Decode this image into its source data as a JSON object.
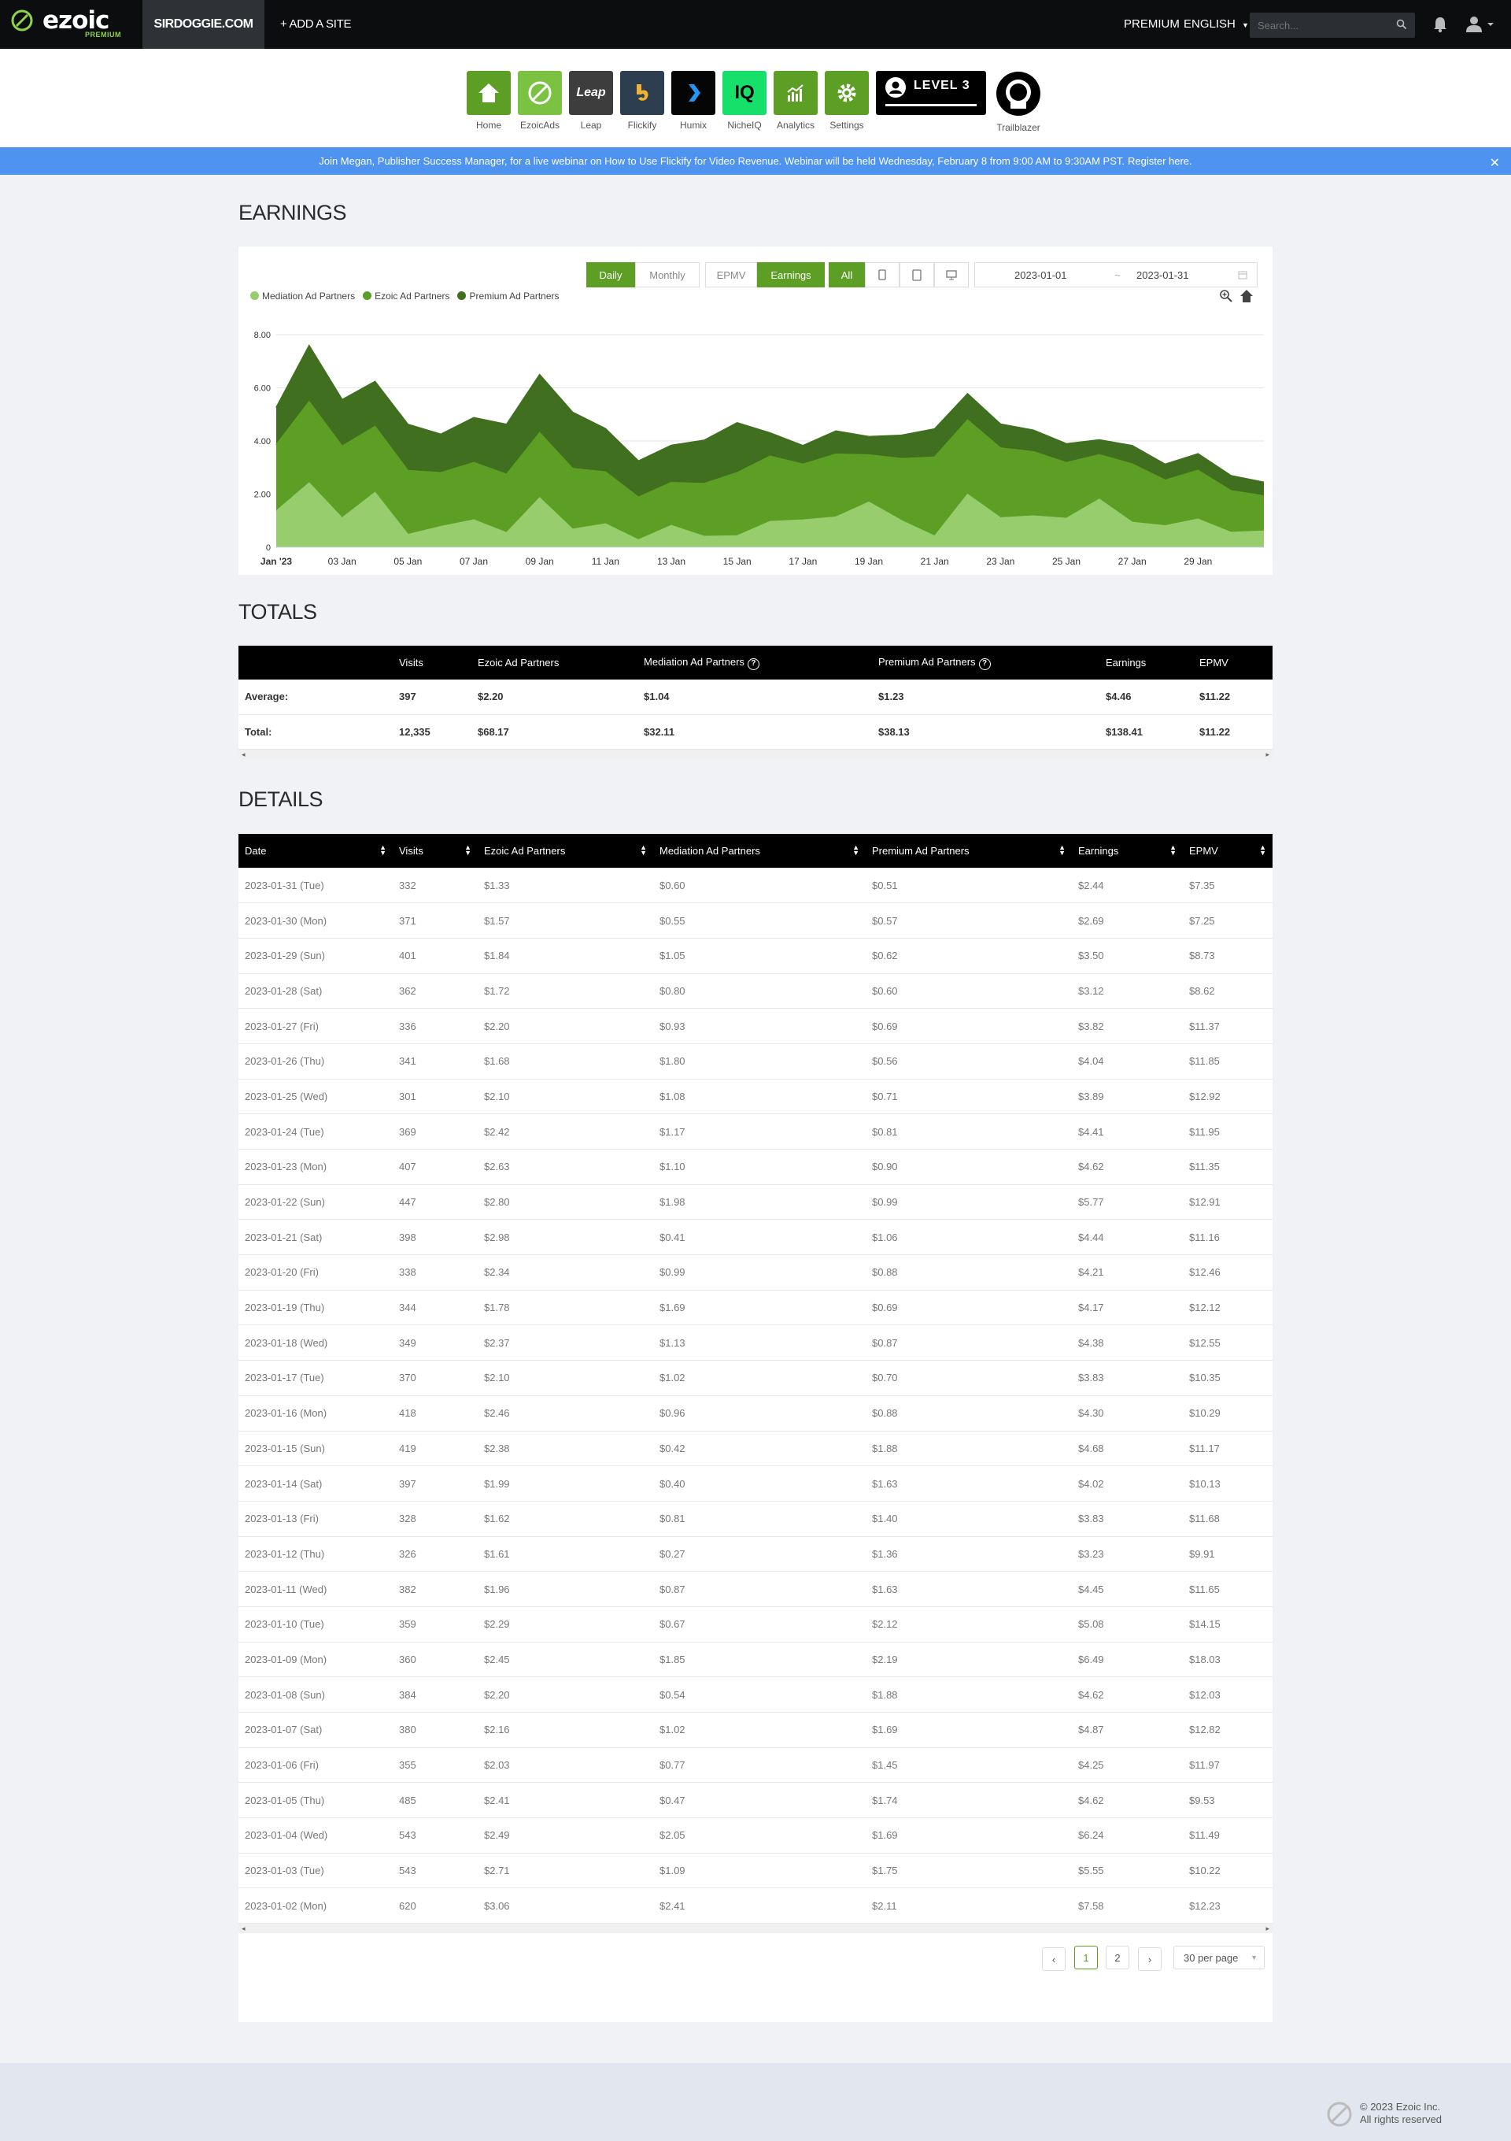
{
  "topbar": {
    "logo_word": "ezoic",
    "logo_sub": "PREMIUM",
    "site": "SIRDOGGIE.COM",
    "add_site": "+ ADD A SITE",
    "premium": "PREMIUM",
    "language": "ENGLISH",
    "search_placeholder": "Search..."
  },
  "apps": [
    {
      "label": "Home",
      "color": "#5c9f24"
    },
    {
      "label": "EzoicAds",
      "color": "#7cc242"
    },
    {
      "label": "Leap",
      "color": "#3d3d3d",
      "text": "Leap"
    },
    {
      "label": "Flickify",
      "color": "#2c3e50"
    },
    {
      "label": "Humix",
      "color": "#050505"
    },
    {
      "label": "NicheIQ",
      "color": "#16e06a",
      "text": "IQ"
    },
    {
      "label": "Analytics",
      "color": "#5c9f24"
    },
    {
      "label": "Settings",
      "color": "#5c9f24"
    }
  ],
  "level_label": "LEVEL 3",
  "trailblazer_label": "Trailblazer",
  "banner": {
    "text": "Join Megan, Publisher Success Manager, for a live webinar on How to Use Flickify for Video Revenue. Webinar will be held Wednesday, February 8 from 9:00 AM to 9:30AM PST.",
    "link": "Register here."
  },
  "earnings": {
    "title": "EARNINGS",
    "controls": {
      "daily": "Daily",
      "monthly": "Monthly",
      "epmv": "EPMV",
      "earnings": "Earnings",
      "all": "All"
    },
    "date_from": "2023-01-01",
    "date_sep": "~",
    "date_to": "2023-01-31"
  },
  "chart_data": {
    "type": "area",
    "stacked": true,
    "x": [
      "2023-01-01",
      "2023-01-02",
      "2023-01-03",
      "2023-01-04",
      "2023-01-05",
      "2023-01-06",
      "2023-01-07",
      "2023-01-08",
      "2023-01-09",
      "2023-01-10",
      "2023-01-11",
      "2023-01-12",
      "2023-01-13",
      "2023-01-14",
      "2023-01-15",
      "2023-01-16",
      "2023-01-17",
      "2023-01-18",
      "2023-01-19",
      "2023-01-20",
      "2023-01-21",
      "2023-01-22",
      "2023-01-23",
      "2023-01-24",
      "2023-01-25",
      "2023-01-26",
      "2023-01-27",
      "2023-01-28",
      "2023-01-29",
      "2023-01-30",
      "2023-01-31"
    ],
    "x_tick_labels": [
      "Jan '23",
      "03 Jan",
      "05 Jan",
      "07 Jan",
      "09 Jan",
      "11 Jan",
      "13 Jan",
      "15 Jan",
      "17 Jan",
      "19 Jan",
      "21 Jan",
      "23 Jan",
      "25 Jan",
      "27 Jan",
      "29 Jan"
    ],
    "y_tick_labels": [
      "0",
      "2.00",
      "4.00",
      "6.00",
      "8.00"
    ],
    "ylim": [
      0,
      8
    ],
    "legend_position": "top-left",
    "series": [
      {
        "name": "Mediation Ad Partners",
        "color": "#97cd6c",
        "values": [
          1.35,
          2.41,
          1.09,
          2.05,
          0.47,
          0.77,
          1.02,
          0.54,
          1.85,
          0.67,
          0.87,
          0.27,
          0.81,
          0.4,
          0.42,
          0.96,
          1.02,
          1.13,
          1.69,
          0.99,
          0.41,
          1.98,
          1.1,
          1.17,
          1.08,
          1.8,
          0.93,
          0.8,
          1.05,
          0.55,
          0.6
        ]
      },
      {
        "name": "Ezoic Ad Partners",
        "color": "#5c9f24",
        "values": [
          2.5,
          3.06,
          2.71,
          2.49,
          2.41,
          2.03,
          2.16,
          2.2,
          2.45,
          2.29,
          1.96,
          1.61,
          1.62,
          1.99,
          2.38,
          2.46,
          2.1,
          2.37,
          1.78,
          2.34,
          2.98,
          2.8,
          2.63,
          2.42,
          2.1,
          1.68,
          2.2,
          1.72,
          1.84,
          1.57,
          1.33
        ]
      },
      {
        "name": "Premium Ad Partners",
        "color": "#3f6f1f",
        "values": [
          1.4,
          2.11,
          1.75,
          1.69,
          1.74,
          1.45,
          1.69,
          1.88,
          2.19,
          2.12,
          1.63,
          1.36,
          1.4,
          1.63,
          1.88,
          0.88,
          0.7,
          0.87,
          0.69,
          0.88,
          1.06,
          0.99,
          0.9,
          0.81,
          0.71,
          0.56,
          0.69,
          0.6,
          0.62,
          0.57,
          0.51
        ]
      }
    ]
  },
  "totals": {
    "title": "TOTALS",
    "headers": [
      "",
      "Visits",
      "Ezoic Ad Partners",
      "Mediation Ad Partners",
      "Premium Ad Partners",
      "Earnings",
      "EPMV"
    ],
    "rows": [
      [
        "Average:",
        "397",
        "$2.20",
        "$1.04",
        "$1.23",
        "$4.46",
        "$11.22"
      ],
      [
        "Total:",
        "12,335",
        "$68.17",
        "$32.11",
        "$38.13",
        "$138.41",
        "$11.22"
      ]
    ]
  },
  "details": {
    "title": "DETAILS",
    "headers": [
      "Date",
      "Visits",
      "Ezoic Ad Partners",
      "Mediation Ad Partners",
      "Premium Ad Partners",
      "Earnings",
      "EPMV"
    ],
    "rows": [
      [
        "2023-01-31 (Tue)",
        "332",
        "$1.33",
        "$0.60",
        "$0.51",
        "$2.44",
        "$7.35"
      ],
      [
        "2023-01-30 (Mon)",
        "371",
        "$1.57",
        "$0.55",
        "$0.57",
        "$2.69",
        "$7.25"
      ],
      [
        "2023-01-29 (Sun)",
        "401",
        "$1.84",
        "$1.05",
        "$0.62",
        "$3.50",
        "$8.73"
      ],
      [
        "2023-01-28 (Sat)",
        "362",
        "$1.72",
        "$0.80",
        "$0.60",
        "$3.12",
        "$8.62"
      ],
      [
        "2023-01-27 (Fri)",
        "336",
        "$2.20",
        "$0.93",
        "$0.69",
        "$3.82",
        "$11.37"
      ],
      [
        "2023-01-26 (Thu)",
        "341",
        "$1.68",
        "$1.80",
        "$0.56",
        "$4.04",
        "$11.85"
      ],
      [
        "2023-01-25 (Wed)",
        "301",
        "$2.10",
        "$1.08",
        "$0.71",
        "$3.89",
        "$12.92"
      ],
      [
        "2023-01-24 (Tue)",
        "369",
        "$2.42",
        "$1.17",
        "$0.81",
        "$4.41",
        "$11.95"
      ],
      [
        "2023-01-23 (Mon)",
        "407",
        "$2.63",
        "$1.10",
        "$0.90",
        "$4.62",
        "$11.35"
      ],
      [
        "2023-01-22 (Sun)",
        "447",
        "$2.80",
        "$1.98",
        "$0.99",
        "$5.77",
        "$12.91"
      ],
      [
        "2023-01-21 (Sat)",
        "398",
        "$2.98",
        "$0.41",
        "$1.06",
        "$4.44",
        "$11.16"
      ],
      [
        "2023-01-20 (Fri)",
        "338",
        "$2.34",
        "$0.99",
        "$0.88",
        "$4.21",
        "$12.46"
      ],
      [
        "2023-01-19 (Thu)",
        "344",
        "$1.78",
        "$1.69",
        "$0.69",
        "$4.17",
        "$12.12"
      ],
      [
        "2023-01-18 (Wed)",
        "349",
        "$2.37",
        "$1.13",
        "$0.87",
        "$4.38",
        "$12.55"
      ],
      [
        "2023-01-17 (Tue)",
        "370",
        "$2.10",
        "$1.02",
        "$0.70",
        "$3.83",
        "$10.35"
      ],
      [
        "2023-01-16 (Mon)",
        "418",
        "$2.46",
        "$0.96",
        "$0.88",
        "$4.30",
        "$10.29"
      ],
      [
        "2023-01-15 (Sun)",
        "419",
        "$2.38",
        "$0.42",
        "$1.88",
        "$4.68",
        "$11.17"
      ],
      [
        "2023-01-14 (Sat)",
        "397",
        "$1.99",
        "$0.40",
        "$1.63",
        "$4.02",
        "$10.13"
      ],
      [
        "2023-01-13 (Fri)",
        "328",
        "$1.62",
        "$0.81",
        "$1.40",
        "$3.83",
        "$11.68"
      ],
      [
        "2023-01-12 (Thu)",
        "326",
        "$1.61",
        "$0.27",
        "$1.36",
        "$3.23",
        "$9.91"
      ],
      [
        "2023-01-11 (Wed)",
        "382",
        "$1.96",
        "$0.87",
        "$1.63",
        "$4.45",
        "$11.65"
      ],
      [
        "2023-01-10 (Tue)",
        "359",
        "$2.29",
        "$0.67",
        "$2.12",
        "$5.08",
        "$14.15"
      ],
      [
        "2023-01-09 (Mon)",
        "360",
        "$2.45",
        "$1.85",
        "$2.19",
        "$6.49",
        "$18.03"
      ],
      [
        "2023-01-08 (Sun)",
        "384",
        "$2.20",
        "$0.54",
        "$1.88",
        "$4.62",
        "$12.03"
      ],
      [
        "2023-01-07 (Sat)",
        "380",
        "$2.16",
        "$1.02",
        "$1.69",
        "$4.87",
        "$12.82"
      ],
      [
        "2023-01-06 (Fri)",
        "355",
        "$2.03",
        "$0.77",
        "$1.45",
        "$4.25",
        "$11.97"
      ],
      [
        "2023-01-05 (Thu)",
        "485",
        "$2.41",
        "$0.47",
        "$1.74",
        "$4.62",
        "$9.53"
      ],
      [
        "2023-01-04 (Wed)",
        "543",
        "$2.49",
        "$2.05",
        "$1.69",
        "$6.24",
        "$11.49"
      ],
      [
        "2023-01-03 (Tue)",
        "543",
        "$2.71",
        "$1.09",
        "$1.75",
        "$5.55",
        "$10.22"
      ],
      [
        "2023-01-02 (Mon)",
        "620",
        "$3.06",
        "$2.41",
        "$2.11",
        "$7.58",
        "$12.23"
      ]
    ]
  },
  "pagination": {
    "prev": "‹",
    "page1": "1",
    "page2": "2",
    "next": "›",
    "per_page": "30 per page"
  },
  "footer": {
    "line1": "© 2023 Ezoic Inc.",
    "line2": "All rights reserved"
  }
}
